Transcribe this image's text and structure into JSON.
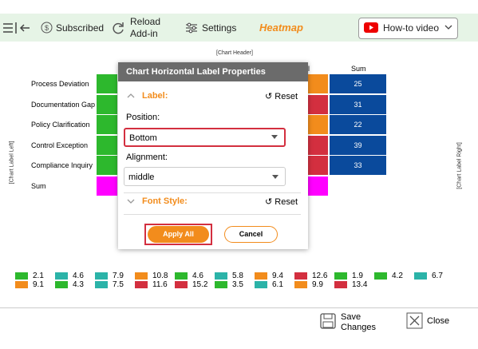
{
  "toolbar": {
    "subscribed": "Subscribed",
    "reload": [
      "Reload",
      "Add-in"
    ],
    "settings": "Settings",
    "app_title": "Heatmap",
    "video": "How-to video"
  },
  "chart": {
    "header": "[Chart Header]",
    "label_left": "[Chart Label Left]",
    "label_right": "[Chart Label Right]",
    "column_partial": "l",
    "sum_header": "Sum",
    "rows": [
      "Process Deviation",
      "Documentation Gap",
      "Policy Clarification",
      "Control Exception",
      "Compliance Inquiry",
      "Sum"
    ],
    "sums": [
      25,
      31,
      22,
      39,
      33
    ],
    "legend": [
      [
        {
          "value": 2.1,
          "color": "#2db82d"
        },
        {
          "value": 9.1,
          "color": "#f28c1c"
        }
      ],
      [
        {
          "value": 4.6,
          "color": "#2bb3a8"
        },
        {
          "value": 4.3,
          "color": "#2db82d"
        }
      ],
      [
        {
          "value": 7.9,
          "color": "#2bb3a8"
        },
        {
          "value": 7.5,
          "color": "#2bb3a8"
        }
      ],
      [
        {
          "value": 10.8,
          "color": "#f28c1c"
        },
        {
          "value": 11.6,
          "color": "#d32f3f"
        }
      ],
      [
        {
          "value": 4.6,
          "color": "#2db82d"
        },
        {
          "value": 15.2,
          "color": "#d32f3f"
        }
      ],
      [
        {
          "value": 5.8,
          "color": "#2bb3a8"
        },
        {
          "value": 3.5,
          "color": "#2db82d"
        }
      ],
      [
        {
          "value": 9.4,
          "color": "#f28c1c"
        },
        {
          "value": 6.1,
          "color": "#2bb3a8"
        }
      ],
      [
        {
          "value": 12.6,
          "color": "#d32f3f"
        },
        {
          "value": 9.9,
          "color": "#f28c1c"
        }
      ],
      [
        {
          "value": 1.9,
          "color": "#2db82d"
        },
        {
          "value": 13.4,
          "color": "#d32f3f"
        }
      ],
      [
        {
          "value": 4.2,
          "color": "#2db82d"
        }
      ],
      [
        {
          "value": 6.7,
          "color": "#2bb3a8"
        }
      ]
    ]
  },
  "dialog": {
    "title": "Chart Horizontal Label Properties",
    "label_section": "Label:",
    "reset": "Reset",
    "position_label": "Position:",
    "position_value": "Bottom",
    "alignment_label": "Alignment:",
    "alignment_value": "middle",
    "font_section": "Font Style:",
    "font_reset": "Reset",
    "apply": "Apply All",
    "cancel": "Cancel"
  },
  "footer": {
    "save": [
      "Save",
      "Changes"
    ],
    "close": "Close"
  }
}
